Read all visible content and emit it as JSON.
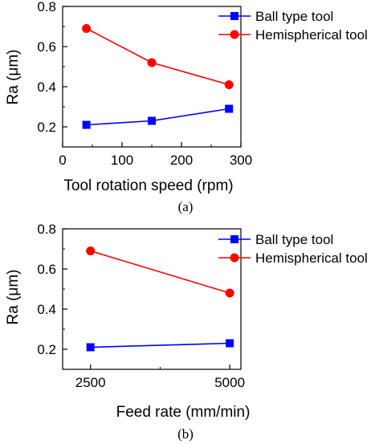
{
  "chart_data": [
    {
      "type": "line",
      "xlabel": "Tool rotation speed (rpm)",
      "ylabel": "Ra (μm)",
      "caption": "(a)",
      "xlim": [
        0,
        300
      ],
      "ylim": [
        0.1,
        0.8
      ],
      "xticks": [
        "0",
        "100",
        "200",
        "300"
      ],
      "yticks": [
        "0.2",
        "0.4",
        "0.6",
        "0.8"
      ],
      "x": [
        40,
        150,
        280
      ],
      "series": [
        {
          "name": "Ball type tool",
          "color": "#0000ff",
          "marker": "square",
          "values": [
            0.21,
            0.23,
            0.29
          ]
        },
        {
          "name": "Hemispherical tool",
          "color": "#ff0000",
          "marker": "circle",
          "values": [
            0.69,
            0.52,
            0.41
          ]
        }
      ],
      "legend": "top-right",
      "grid": false
    },
    {
      "type": "line",
      "xlabel": "Feed rate (mm/min)",
      "ylabel": "Ra (μm)",
      "caption": "(b)",
      "xlim": [
        2000,
        5200
      ],
      "ylim": [
        0.1,
        0.8
      ],
      "xticks": [
        "2500",
        "5000"
      ],
      "yticks": [
        "0.2",
        "0.4",
        "0.6",
        "0.8"
      ],
      "x": [
        2500,
        5000
      ],
      "series": [
        {
          "name": "Ball type tool",
          "color": "#0000ff",
          "marker": "square",
          "values": [
            0.21,
            0.23
          ]
        },
        {
          "name": "Hemispherical tool",
          "color": "#ff0000",
          "marker": "circle",
          "values": [
            0.69,
            0.48
          ]
        }
      ],
      "legend": "top-right",
      "grid": false
    }
  ]
}
